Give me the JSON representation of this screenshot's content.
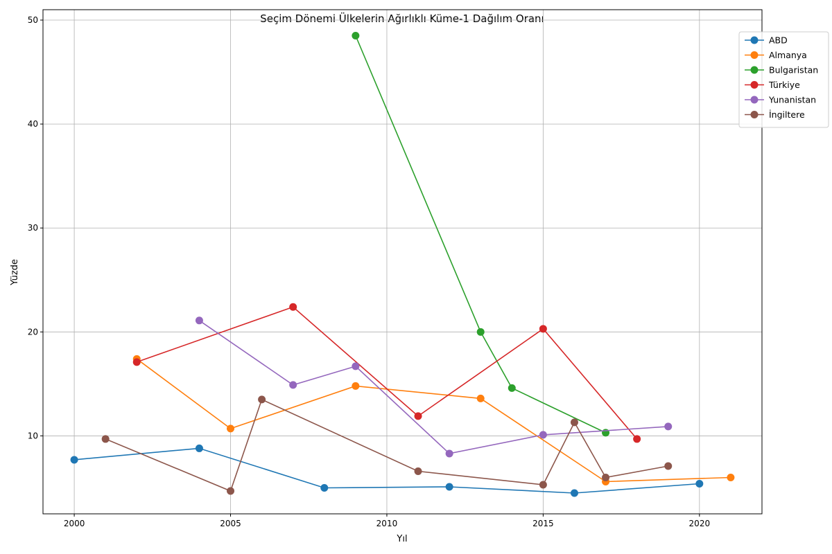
{
  "chart_data": {
    "type": "line",
    "title": "Seçim Dönemi Ülkelerin Ağırlıklı Küme-1 Dağılım Oranı",
    "xlabel": "Yıl",
    "ylabel": "Yüzde",
    "xlim": [
      1999,
      2022
    ],
    "ylim": [
      2.5,
      51
    ],
    "xticks": [
      2000,
      2005,
      2010,
      2015,
      2020
    ],
    "yticks": [
      10,
      20,
      30,
      40,
      50
    ],
    "grid": true,
    "legend_position": "top-right",
    "series": [
      {
        "name": "ABD",
        "color": "#1f77b4",
        "x": [
          2000,
          2004,
          2008,
          2012,
          2016,
          2020
        ],
        "y": [
          7.7,
          8.8,
          5.0,
          5.1,
          4.5,
          5.4
        ]
      },
      {
        "name": "Almanya",
        "color": "#ff7f0e",
        "x": [
          2002,
          2005,
          2009,
          2013,
          2017,
          2021
        ],
        "y": [
          17.4,
          10.7,
          14.8,
          13.6,
          5.6,
          6.0
        ]
      },
      {
        "name": "Bulgaristan",
        "color": "#2ca02c",
        "x": [
          2009,
          2013,
          2014,
          2017
        ],
        "y": [
          48.5,
          20.0,
          14.6,
          10.3
        ]
      },
      {
        "name": "Türkiye",
        "color": "#d62728",
        "x": [
          2002,
          2007,
          2011,
          2015,
          2018
        ],
        "y": [
          17.1,
          22.4,
          11.9,
          20.3,
          9.7
        ]
      },
      {
        "name": "Yunanistan",
        "color": "#9467bd",
        "x": [
          2004,
          2007,
          2009,
          2012,
          2015,
          2019
        ],
        "y": [
          21.1,
          14.9,
          16.7,
          8.3,
          10.1,
          10.9
        ]
      },
      {
        "name": "İngiltere",
        "color": "#8c564b",
        "x": [
          2001,
          2005,
          2006,
          2011,
          2015,
          2016,
          2017,
          2019
        ],
        "y": [
          9.7,
          4.7,
          13.5,
          6.6,
          5.3,
          11.3,
          6.0,
          7.1
        ]
      }
    ]
  }
}
